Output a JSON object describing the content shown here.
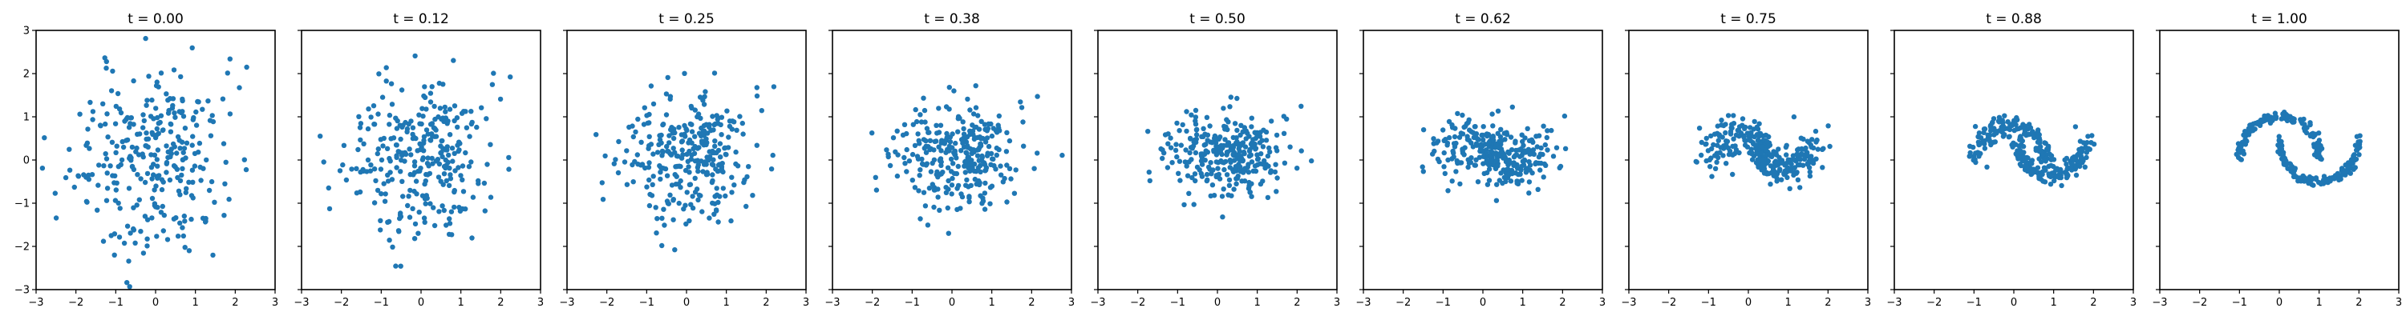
{
  "chart_data": {
    "type": "scatter",
    "point_color": "#1f77b4",
    "xlim": [
      -3,
      3
    ],
    "ylim": [
      -3,
      3
    ],
    "xticks": [
      -3,
      -2,
      -1,
      0,
      1,
      2,
      3
    ],
    "yticks": [
      -3,
      -2,
      -1,
      0,
      1,
      2,
      3
    ],
    "shared_y_axis": true,
    "grid": false,
    "panels": [
      {
        "title": "t = 0.00",
        "t": 0.0
      },
      {
        "title": "t = 0.12",
        "t": 0.125
      },
      {
        "title": "t = 0.25",
        "t": 0.25
      },
      {
        "title": "t = 0.38",
        "t": 0.375
      },
      {
        "title": "t = 0.50",
        "t": 0.5
      },
      {
        "title": "t = 0.62",
        "t": 0.625
      },
      {
        "title": "t = 0.75",
        "t": 0.75
      },
      {
        "title": "t = 0.88",
        "t": 0.875
      },
      {
        "title": "t = 1.00",
        "t": 1.0
      }
    ],
    "n_points": 300,
    "t0_distribution": {
      "kind": "standard-normal",
      "mean": [
        0,
        0
      ],
      "std": [
        1,
        1
      ]
    },
    "t1_distribution": {
      "kind": "two-moons",
      "x_range": [
        -1,
        2
      ],
      "y_range": [
        -0.5,
        1.0
      ],
      "noise": 0.05
    }
  }
}
